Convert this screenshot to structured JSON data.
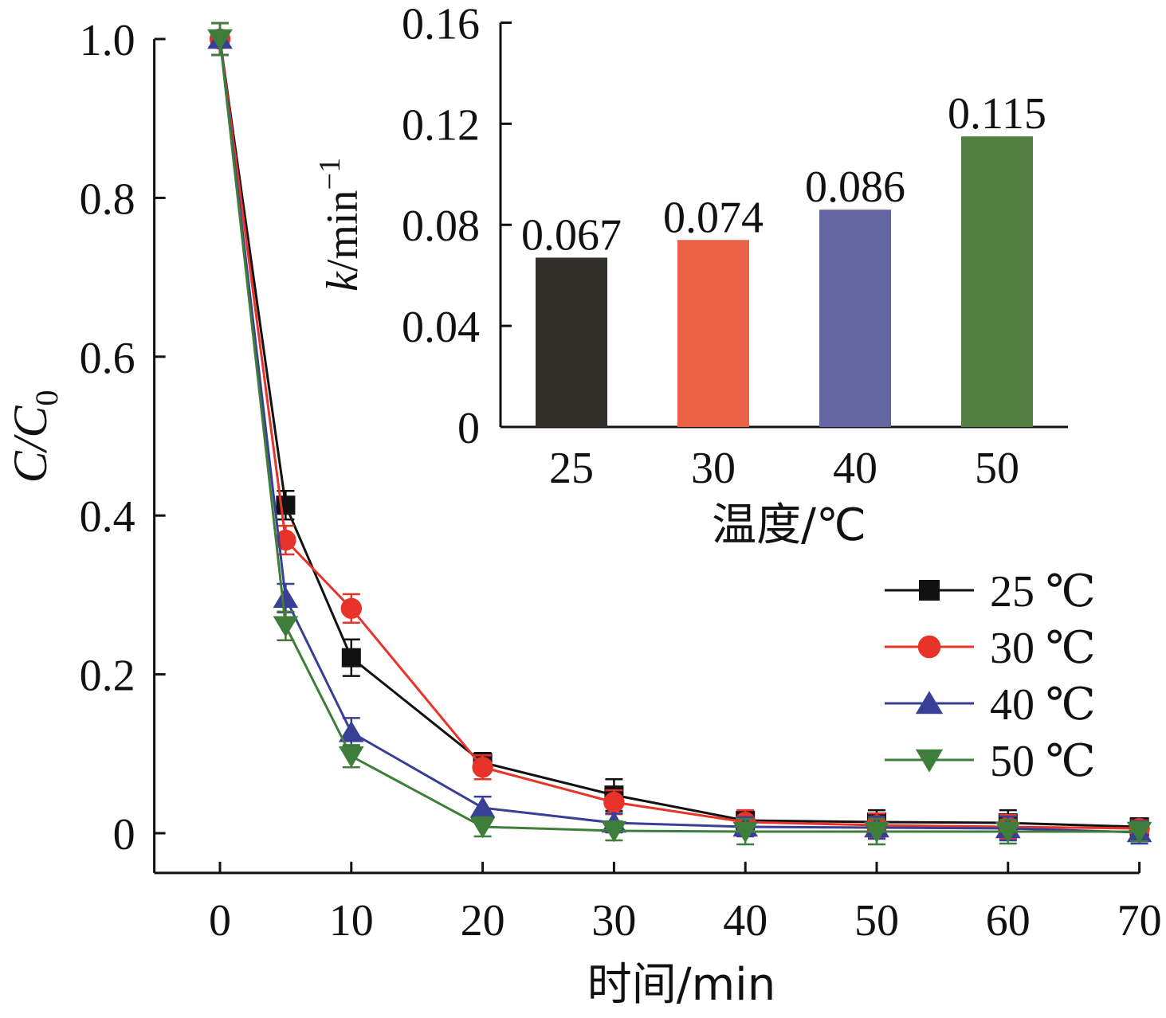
{
  "chart_data": [
    {
      "type": "line",
      "xlabel": "时间/min",
      "ylabel_main": "C/C",
      "ylabel_sub": "0",
      "xlim": [
        -5,
        70
      ],
      "ylim": [
        -0.05,
        1.0
      ],
      "xticks": [
        0,
        10,
        20,
        30,
        40,
        50,
        60,
        70
      ],
      "yticks": [
        0,
        0.2,
        0.4,
        0.6,
        0.8,
        1.0
      ],
      "ytick_labels": [
        "0",
        "0.2",
        "0.4",
        "0.6",
        "0.8",
        "1.0"
      ],
      "x": [
        0,
        5,
        10,
        20,
        30,
        40,
        50,
        60,
        70
      ],
      "legend_position": "right",
      "series": [
        {
          "name": "25 ℃",
          "color": "#111111",
          "marker": "square",
          "values": [
            1.0,
            0.413,
            0.221,
            0.089,
            0.048,
            0.016,
            0.014,
            0.013,
            0.008
          ],
          "errors": [
            0.02,
            0.018,
            0.023,
            0.012,
            0.02,
            0.012,
            0.015,
            0.016,
            0.01
          ]
        },
        {
          "name": "30 ℃",
          "color": "#e8332a",
          "marker": "circle",
          "values": [
            1.0,
            0.369,
            0.283,
            0.083,
            0.039,
            0.014,
            0.01,
            0.008,
            0.006
          ],
          "errors": [
            0.02,
            0.018,
            0.018,
            0.015,
            0.015,
            0.015,
            0.015,
            0.015,
            0.01
          ]
        },
        {
          "name": "40 ℃",
          "color": "#3a3f96",
          "marker": "triangle-up",
          "values": [
            1.0,
            0.296,
            0.127,
            0.032,
            0.013,
            0.008,
            0.007,
            0.006,
            0.001
          ],
          "errors": [
            0.02,
            0.018,
            0.018,
            0.014,
            0.012,
            0.012,
            0.014,
            0.015,
            0.014
          ]
        },
        {
          "name": "50 ℃",
          "color": "#3f7d3a",
          "marker": "triangle-down",
          "values": [
            1.0,
            0.261,
            0.097,
            0.008,
            0.003,
            0.002,
            0.002,
            0.002,
            0.002
          ],
          "errors": [
            0.02,
            0.018,
            0.014,
            0.012,
            0.012,
            0.016,
            0.016,
            0.015,
            0.012
          ]
        }
      ]
    },
    {
      "type": "bar",
      "xlabel": "温度/℃",
      "ylabel_main": "k",
      "ylabel_unit": "/min",
      "ylabel_sup": "−1",
      "ylim": [
        0,
        0.16
      ],
      "yticks": [
        0,
        0.04,
        0.08,
        0.12,
        0.16
      ],
      "ytick_labels": [
        "0",
        "0.04",
        "0.08",
        "0.12",
        "0.16"
      ],
      "categories": [
        "25",
        "30",
        "40",
        "50"
      ],
      "values": [
        0.067,
        0.074,
        0.086,
        0.115
      ],
      "data_labels": [
        "0.067",
        "0.074",
        "0.086",
        "0.115"
      ],
      "colors": [
        "#33302b",
        "#ea6148",
        "#6466a1",
        "#537f43"
      ]
    }
  ]
}
